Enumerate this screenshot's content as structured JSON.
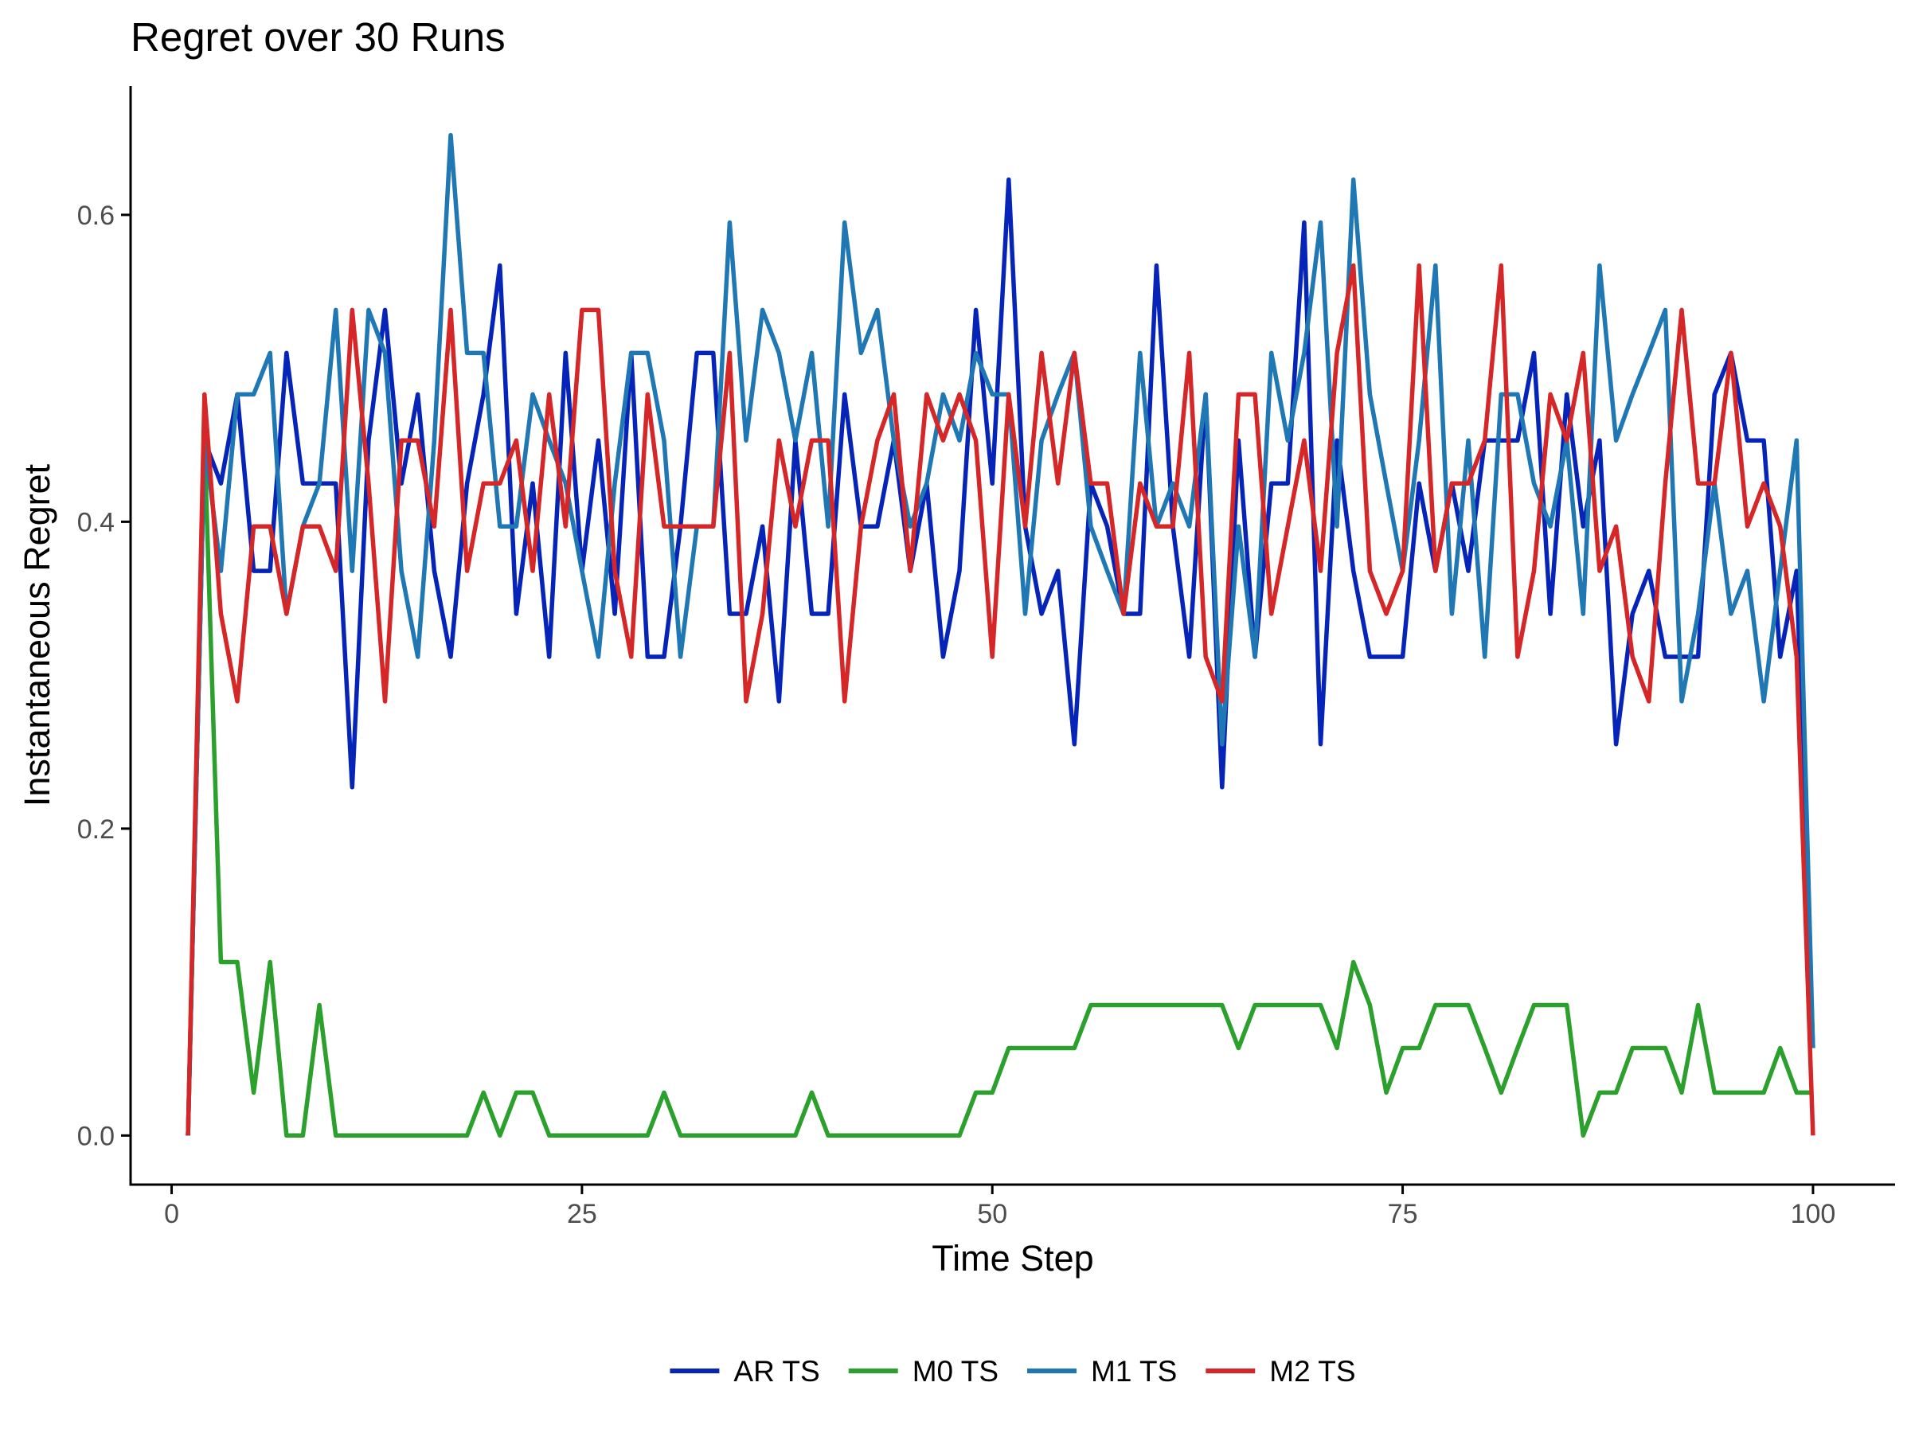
{
  "chart_data": {
    "type": "line",
    "title": "Regret over 30 Runs",
    "xlabel": "Time Step",
    "ylabel": "Instantaneous Regret",
    "xlim": [
      -2.5,
      105
    ],
    "ylim": [
      -0.032,
      0.684
    ],
    "xticks": [
      0,
      25,
      50,
      75,
      100
    ],
    "yticks": [
      0.0,
      0.2,
      0.4,
      0.6
    ],
    "xtick_labels": [
      "0",
      "25",
      "50",
      "75",
      "100"
    ],
    "ytick_labels": [
      "0.0",
      "0.2",
      "0.4",
      "0.6"
    ],
    "grid": false,
    "legend_position": "bottom",
    "series": [
      {
        "name": "AR TS",
        "color": "#0625b8",
        "x": [
          1,
          2,
          3,
          4,
          5,
          6,
          7,
          8,
          9,
          10,
          11,
          12,
          13,
          14,
          15,
          16,
          17,
          18,
          19,
          20,
          21,
          22,
          23,
          24,
          25,
          26,
          27,
          28,
          29,
          30,
          31,
          32,
          33,
          34,
          35,
          36,
          37,
          38,
          39,
          40,
          41,
          42,
          43,
          44,
          45,
          46,
          47,
          48,
          49,
          50,
          51,
          52,
          53,
          54,
          55,
          56,
          57,
          58,
          59,
          60,
          61,
          62,
          63,
          64,
          65,
          66,
          67,
          68,
          69,
          70,
          71,
          72,
          73,
          74,
          75,
          76,
          77,
          78,
          79,
          80,
          81,
          82,
          83,
          84,
          85,
          86,
          87,
          88,
          89,
          90,
          91,
          92,
          93,
          94,
          95,
          96,
          97,
          98,
          99,
          100
        ],
        "y": [
          0.0,
          0.453,
          0.425,
          0.483,
          0.368,
          0.368,
          0.51,
          0.425,
          0.425,
          0.425,
          0.227,
          0.453,
          0.538,
          0.425,
          0.483,
          0.368,
          0.312,
          0.425,
          0.483,
          0.567,
          0.34,
          0.425,
          0.312,
          0.51,
          0.368,
          0.453,
          0.34,
          0.51,
          0.312,
          0.312,
          0.397,
          0.51,
          0.51,
          0.34,
          0.34,
          0.397,
          0.283,
          0.453,
          0.34,
          0.34,
          0.483,
          0.397,
          0.397,
          0.453,
          0.368,
          0.425,
          0.312,
          0.368,
          0.538,
          0.425,
          0.623,
          0.397,
          0.34,
          0.368,
          0.255,
          0.425,
          0.397,
          0.34,
          0.34,
          0.567,
          0.397,
          0.312,
          0.483,
          0.227,
          0.453,
          0.312,
          0.425,
          0.425,
          0.595,
          0.255,
          0.453,
          0.368,
          0.312,
          0.312,
          0.312,
          0.425,
          0.368,
          0.425,
          0.368,
          0.453,
          0.453,
          0.453,
          0.51,
          0.34,
          0.483,
          0.397,
          0.453,
          0.255,
          0.34,
          0.368,
          0.312,
          0.312,
          0.312,
          0.483,
          0.51,
          0.453,
          0.453,
          0.312,
          0.368,
          0.057
        ]
      },
      {
        "name": "M0 TS",
        "color": "#2ca02c",
        "x": [
          1,
          2,
          3,
          4,
          5,
          6,
          7,
          8,
          9,
          10,
          11,
          12,
          13,
          14,
          15,
          16,
          17,
          18,
          19,
          20,
          21,
          22,
          23,
          24,
          25,
          26,
          27,
          28,
          29,
          30,
          31,
          32,
          33,
          34,
          35,
          36,
          37,
          38,
          39,
          40,
          41,
          42,
          43,
          44,
          45,
          46,
          47,
          48,
          49,
          50,
          51,
          52,
          53,
          54,
          55,
          56,
          57,
          58,
          59,
          60,
          61,
          62,
          63,
          64,
          65,
          66,
          67,
          68,
          69,
          70,
          71,
          72,
          73,
          74,
          75,
          76,
          77,
          78,
          79,
          80,
          81,
          82,
          83,
          84,
          85,
          86,
          87,
          88,
          89,
          90,
          91,
          92,
          93,
          94,
          95,
          96,
          97,
          98,
          99,
          100
        ],
        "y": [
          0.0,
          0.453,
          0.113,
          0.113,
          0.028,
          0.113,
          0.0,
          0.0,
          0.085,
          0.0,
          0.0,
          0.0,
          0.0,
          0.0,
          0.0,
          0.0,
          0.0,
          0.0,
          0.028,
          0.0,
          0.028,
          0.028,
          0.0,
          0.0,
          0.0,
          0.0,
          0.0,
          0.0,
          0.0,
          0.028,
          0.0,
          0.0,
          0.0,
          0.0,
          0.0,
          0.0,
          0.0,
          0.0,
          0.028,
          0.0,
          0.0,
          0.0,
          0.0,
          0.0,
          0.0,
          0.0,
          0.0,
          0.0,
          0.028,
          0.028,
          0.057,
          0.057,
          0.057,
          0.057,
          0.057,
          0.085,
          0.085,
          0.085,
          0.085,
          0.085,
          0.085,
          0.085,
          0.085,
          0.085,
          0.057,
          0.085,
          0.085,
          0.085,
          0.085,
          0.085,
          0.057,
          0.113,
          0.085,
          0.028,
          0.057,
          0.057,
          0.085,
          0.085,
          0.085,
          0.057,
          0.028,
          0.057,
          0.085,
          0.085,
          0.085,
          0.0,
          0.028,
          0.028,
          0.057,
          0.057,
          0.057,
          0.028,
          0.085,
          0.028,
          0.028,
          0.028,
          0.028,
          0.057,
          0.028,
          0.028
        ]
      },
      {
        "name": "M1 TS",
        "color": "#1f77b4",
        "x": [
          1,
          2,
          3,
          4,
          5,
          6,
          7,
          8,
          9,
          10,
          11,
          12,
          13,
          14,
          15,
          16,
          17,
          18,
          19,
          20,
          21,
          22,
          23,
          24,
          25,
          26,
          27,
          28,
          29,
          30,
          31,
          32,
          33,
          34,
          35,
          36,
          37,
          38,
          39,
          40,
          41,
          42,
          43,
          44,
          45,
          46,
          47,
          48,
          49,
          50,
          51,
          52,
          53,
          54,
          55,
          56,
          57,
          58,
          59,
          60,
          61,
          62,
          63,
          64,
          65,
          66,
          67,
          68,
          69,
          70,
          71,
          72,
          73,
          74,
          75,
          76,
          77,
          78,
          79,
          80,
          81,
          82,
          83,
          84,
          85,
          86,
          87,
          88,
          89,
          90,
          91,
          92,
          93,
          94,
          95,
          96,
          97,
          98,
          99,
          100
        ],
        "y": [
          0.0,
          0.453,
          0.368,
          0.483,
          0.483,
          0.51,
          0.34,
          0.397,
          0.425,
          0.538,
          0.368,
          0.538,
          0.51,
          0.368,
          0.312,
          0.453,
          0.652,
          0.51,
          0.51,
          0.397,
          0.397,
          0.483,
          0.453,
          0.425,
          0.368,
          0.312,
          0.425,
          0.51,
          0.51,
          0.453,
          0.312,
          0.397,
          0.397,
          0.595,
          0.453,
          0.538,
          0.51,
          0.453,
          0.51,
          0.397,
          0.595,
          0.51,
          0.538,
          0.453,
          0.397,
          0.425,
          0.483,
          0.453,
          0.51,
          0.483,
          0.483,
          0.34,
          0.453,
          0.483,
          0.51,
          0.397,
          0.368,
          0.34,
          0.51,
          0.397,
          0.425,
          0.397,
          0.483,
          0.255,
          0.397,
          0.312,
          0.51,
          0.453,
          0.51,
          0.595,
          0.397,
          0.623,
          0.483,
          0.425,
          0.368,
          0.453,
          0.567,
          0.34,
          0.453,
          0.312,
          0.483,
          0.483,
          0.425,
          0.397,
          0.453,
          0.34,
          0.567,
          0.453,
          0.483,
          0.51,
          0.538,
          0.283,
          0.34,
          0.425,
          0.34,
          0.368,
          0.283,
          0.368,
          0.453,
          0.057
        ]
      },
      {
        "name": "M2 TS",
        "color": "#d62728",
        "x": [
          1,
          2,
          3,
          4,
          5,
          6,
          7,
          8,
          9,
          10,
          11,
          12,
          13,
          14,
          15,
          16,
          17,
          18,
          19,
          20,
          21,
          22,
          23,
          24,
          25,
          26,
          27,
          28,
          29,
          30,
          31,
          32,
          33,
          34,
          35,
          36,
          37,
          38,
          39,
          40,
          41,
          42,
          43,
          44,
          45,
          46,
          47,
          48,
          49,
          50,
          51,
          52,
          53,
          54,
          55,
          56,
          57,
          58,
          59,
          60,
          61,
          62,
          63,
          64,
          65,
          66,
          67,
          68,
          69,
          70,
          71,
          72,
          73,
          74,
          75,
          76,
          77,
          78,
          79,
          80,
          81,
          82,
          83,
          84,
          85,
          86,
          87,
          88,
          89,
          90,
          91,
          92,
          93,
          94,
          95,
          96,
          97,
          98,
          99,
          100
        ],
        "y": [
          0.0,
          0.483,
          0.34,
          0.283,
          0.397,
          0.397,
          0.34,
          0.397,
          0.397,
          0.368,
          0.538,
          0.425,
          0.283,
          0.453,
          0.453,
          0.397,
          0.538,
          0.368,
          0.425,
          0.425,
          0.453,
          0.368,
          0.483,
          0.397,
          0.538,
          0.538,
          0.368,
          0.312,
          0.483,
          0.397,
          0.397,
          0.397,
          0.397,
          0.51,
          0.283,
          0.34,
          0.453,
          0.397,
          0.453,
          0.453,
          0.283,
          0.397,
          0.453,
          0.483,
          0.368,
          0.483,
          0.453,
          0.483,
          0.453,
          0.312,
          0.483,
          0.397,
          0.51,
          0.425,
          0.51,
          0.425,
          0.425,
          0.34,
          0.425,
          0.397,
          0.397,
          0.51,
          0.312,
          0.283,
          0.483,
          0.483,
          0.34,
          0.397,
          0.453,
          0.368,
          0.51,
          0.567,
          0.368,
          0.34,
          0.368,
          0.567,
          0.368,
          0.425,
          0.425,
          0.453,
          0.567,
          0.312,
          0.368,
          0.483,
          0.453,
          0.51,
          0.368,
          0.397,
          0.312,
          0.283,
          0.425,
          0.538,
          0.425,
          0.425,
          0.51,
          0.397,
          0.425,
          0.397,
          0.312,
          0.0
        ]
      }
    ]
  }
}
